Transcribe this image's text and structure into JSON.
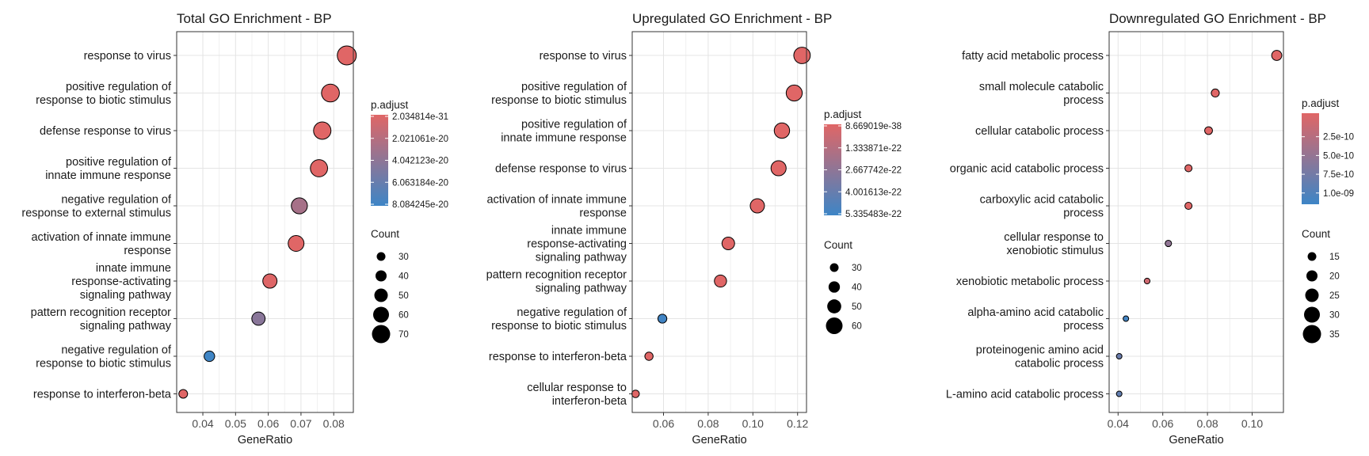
{
  "chart_data": [
    {
      "type": "scatter",
      "title": "Total GO Enrichment - BP",
      "xlabel": "GeneRatio",
      "ylabel": "",
      "xlim": [
        0.032,
        0.086
      ],
      "xticks": [
        "0.04",
        "0.05",
        "0.06",
        "0.07",
        "0.08"
      ],
      "grid": true,
      "categories": [
        "response to virus",
        "positive regulation of\nresponse to biotic stimulus",
        "defense response to virus",
        "positive regulation of\ninnate immune response",
        "negative regulation of\nresponse to external stimulus",
        "activation of innate immune\nresponse",
        "innate immune\nresponse-activating\nsignaling pathway",
        "pattern recognition receptor\nsignaling pathway",
        "negative regulation of\nresponse to biotic stimulus",
        "response to interferon-beta"
      ],
      "points": [
        {
          "category": "response to virus",
          "gene_ratio": 0.084,
          "count": 75,
          "p_adjust": 2e-31
        },
        {
          "category": "positive regulation of\nresponse to biotic stimulus",
          "gene_ratio": 0.079,
          "count": 70,
          "p_adjust": 1e-25
        },
        {
          "category": "defense response to virus",
          "gene_ratio": 0.0765,
          "count": 68,
          "p_adjust": 1e-25
        },
        {
          "category": "positive regulation of\ninnate immune response",
          "gene_ratio": 0.0755,
          "count": 67,
          "p_adjust": 1e-24
        },
        {
          "category": "negative regulation of\nresponse to external stimulus",
          "gene_ratio": 0.0695,
          "count": 62,
          "p_adjust": 2.9e-20
        },
        {
          "category": "activation of innate immune\nresponse",
          "gene_ratio": 0.0685,
          "count": 61,
          "p_adjust": 1e-22
        },
        {
          "category": "innate immune\nresponse-activating\nsignaling pathway",
          "gene_ratio": 0.0605,
          "count": 54,
          "p_adjust": 1e-21
        },
        {
          "category": "pattern recognition receptor\nsignaling pathway",
          "gene_ratio": 0.057,
          "count": 50,
          "p_adjust": 4.3e-20
        },
        {
          "category": "negative regulation of\nresponse to biotic stimulus",
          "gene_ratio": 0.042,
          "count": 38,
          "p_adjust": 8e-20
        },
        {
          "category": "response to interferon-beta",
          "gene_ratio": 0.034,
          "count": 30,
          "p_adjust": 1e-22
        }
      ],
      "color_legend": {
        "title": "p.adjust",
        "labels": [
          "2.034814e-31",
          "2.021061e-20",
          "4.042123e-20",
          "6.063184e-20",
          "8.084245e-20"
        ],
        "low": 2.034814e-31,
        "high": 8.084245e-20,
        "low_color": "#e06666",
        "high_color": "#3d85c6"
      },
      "size_legend": {
        "title": "Count",
        "values": [
          30,
          40,
          50,
          60,
          70
        ],
        "labels": [
          "30",
          "40",
          "50",
          "60",
          "70"
        ]
      }
    },
    {
      "type": "scatter",
      "title": "Upregulated GO Enrichment - BP",
      "xlabel": "GeneRatio",
      "ylabel": "",
      "xlim": [
        0.046,
        0.124
      ],
      "xticks": [
        "0.06",
        "0.08",
        "0.10",
        "0.12"
      ],
      "grid": true,
      "categories": [
        "response to virus",
        "positive regulation of\nresponse to biotic stimulus",
        "positive regulation of\ninnate immune response",
        "defense response to virus",
        "activation of innate immune\nresponse",
        "innate immune\nresponse-activating\nsignaling pathway",
        "pattern recognition receptor\nsignaling pathway",
        "negative regulation of\nresponse to biotic stimulus",
        "response to interferon-beta",
        "cellular response to\ninterferon-beta"
      ],
      "points": [
        {
          "category": "response to virus",
          "gene_ratio": 0.122,
          "count": 64,
          "p_adjust": 8.7e-38
        },
        {
          "category": "positive regulation of\nresponse to biotic stimulus",
          "gene_ratio": 0.1185,
          "count": 62,
          "p_adjust": 1e-30
        },
        {
          "category": "positive regulation of\ninnate immune response",
          "gene_ratio": 0.113,
          "count": 59,
          "p_adjust": 1e-30
        },
        {
          "category": "defense response to virus",
          "gene_ratio": 0.1115,
          "count": 58,
          "p_adjust": 1e-30
        },
        {
          "category": "activation of innate immune\nresponse",
          "gene_ratio": 0.102,
          "count": 54,
          "p_adjust": 1e-28
        },
        {
          "category": "innate immune\nresponse-activating\nsignaling pathway",
          "gene_ratio": 0.089,
          "count": 47,
          "p_adjust": 1e-26
        },
        {
          "category": "pattern recognition receptor\nsignaling pathway",
          "gene_ratio": 0.0855,
          "count": 45,
          "p_adjust": 1e-26
        },
        {
          "category": "negative regulation of\nresponse to biotic stimulus",
          "gene_ratio": 0.0595,
          "count": 31,
          "p_adjust": 5.2e-22
        },
        {
          "category": "response to interferon-beta",
          "gene_ratio": 0.0535,
          "count": 28,
          "p_adjust": 1e-25
        },
        {
          "category": "cellular response to\ninterferon-beta",
          "gene_ratio": 0.0475,
          "count": 25,
          "p_adjust": 1e-25
        }
      ],
      "color_legend": {
        "title": "p.adjust",
        "labels": [
          "8.669019e-38",
          "1.333871e-22",
          "2.667742e-22",
          "4.001613e-22",
          "5.335483e-22"
        ],
        "low": 8.669019e-38,
        "high": 5.335483e-22,
        "low_color": "#e06666",
        "high_color": "#3d85c6"
      },
      "size_legend": {
        "title": "Count",
        "values": [
          30,
          40,
          50,
          60
        ],
        "labels": [
          "30",
          "40",
          "50",
          "60"
        ]
      }
    },
    {
      "type": "scatter",
      "title": "Downregulated GO Enrichment - BP",
      "xlabel": "GeneRatio",
      "ylabel": "",
      "xlim": [
        0.036,
        0.114
      ],
      "xticks": [
        "0.04",
        "0.06",
        "0.08",
        "0.10"
      ],
      "grid": true,
      "categories": [
        "fatty acid metabolic process",
        "small molecule catabolic\nprocess",
        "cellular catabolic process",
        "organic acid catabolic process",
        "carboxylic acid catabolic\nprocess",
        "cellular response to\nxenobiotic stimulus",
        "xenobiotic metabolic process",
        "alpha-amino acid catabolic\nprocess",
        "proteinogenic amino acid\ncatabolic process",
        "L-amino acid catabolic process"
      ],
      "points": [
        {
          "category": "fatty acid metabolic process",
          "gene_ratio": 0.111,
          "count": 36,
          "p_adjust": 1e-13
        },
        {
          "category": "small molecule catabolic\nprocess",
          "gene_ratio": 0.0835,
          "count": 27,
          "p_adjust": 1e-13
        },
        {
          "category": "cellular catabolic process",
          "gene_ratio": 0.0805,
          "count": 26,
          "p_adjust": 1e-13
        },
        {
          "category": "organic acid catabolic process",
          "gene_ratio": 0.0715,
          "count": 23,
          "p_adjust": 1e-12
        },
        {
          "category": "carboxylic acid catabolic\nprocess",
          "gene_ratio": 0.0715,
          "count": 23,
          "p_adjust": 1e-12
        },
        {
          "category": "cellular response to\nxenobiotic stimulus",
          "gene_ratio": 0.0625,
          "count": 20,
          "p_adjust": 5.6e-10
        },
        {
          "category": "xenobiotic metabolic process",
          "gene_ratio": 0.053,
          "count": 17,
          "p_adjust": 1.2e-10
        },
        {
          "category": "alpha-amino acid catabolic\nprocess",
          "gene_ratio": 0.0435,
          "count": 14,
          "p_adjust": 1.1e-09
        },
        {
          "category": "proteinogenic amino acid\ncatabolic process",
          "gene_ratio": 0.0405,
          "count": 13,
          "p_adjust": 8.3e-10
        },
        {
          "category": "L-amino acid catabolic process",
          "gene_ratio": 0.0405,
          "count": 13,
          "p_adjust": 8.9e-10
        }
      ],
      "color_legend": {
        "title": "p.adjust",
        "labels": [
          "2.5e-10",
          "5.0e-10",
          "7.5e-10",
          "1.0e-09"
        ],
        "low": 0,
        "high": 1.15e-09,
        "low_color": "#e06666",
        "high_color": "#3d85c6"
      },
      "size_legend": {
        "title": "Count",
        "values": [
          15,
          20,
          25,
          30,
          35
        ],
        "labels": [
          "15",
          "20",
          "25",
          "30",
          "35"
        ]
      }
    }
  ]
}
